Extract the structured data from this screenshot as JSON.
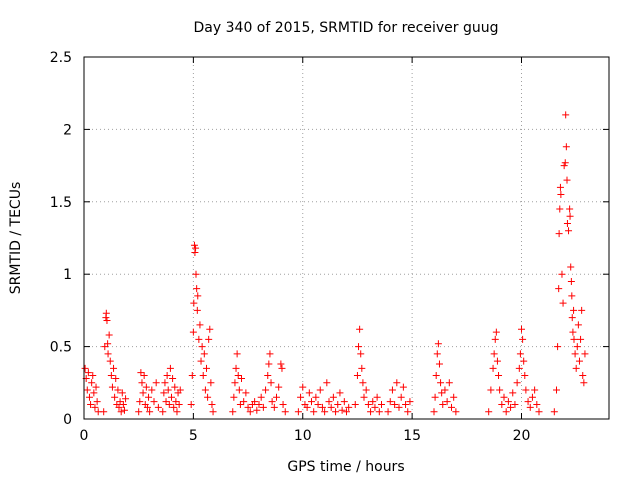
{
  "chart_data": {
    "type": "scatter",
    "title": "Day 340 of 2015, SRMTID for receiver guug",
    "xlabel": "GPS time / hours",
    "ylabel": "SRMTID / TECUs",
    "xlim": [
      0,
      24
    ],
    "ylim": [
      0,
      2.5
    ],
    "xticks": [
      0,
      5,
      10,
      15,
      20
    ],
    "yticks": [
      0,
      0.5,
      1,
      1.5,
      2,
      2.5
    ],
    "xtick_labels": [
      "0",
      "5",
      "10",
      "15",
      "20"
    ],
    "ytick_labels": [
      "0",
      "0.5",
      "1",
      "1.5",
      "2",
      "2.5"
    ],
    "grid": true,
    "marker": "+",
    "color": "#ff0000",
    "series": [
      {
        "name": "SRMTID",
        "points": [
          [
            0.05,
            0.35
          ],
          [
            0.1,
            0.28
          ],
          [
            0.15,
            0.2
          ],
          [
            0.2,
            0.32
          ],
          [
            0.25,
            0.15
          ],
          [
            0.3,
            0.1
          ],
          [
            0.35,
            0.25
          ],
          [
            0.4,
            0.3
          ],
          [
            0.45,
            0.18
          ],
          [
            0.5,
            0.08
          ],
          [
            0.55,
            0.22
          ],
          [
            0.6,
            0.12
          ],
          [
            0.65,
            0.05
          ],
          [
            0.9,
            0.05
          ],
          [
            0.95,
            0.5
          ],
          [
            1.0,
            0.7
          ],
          [
            1.02,
            0.73
          ],
          [
            1.05,
            0.68
          ],
          [
            1.08,
            0.52
          ],
          [
            1.1,
            0.45
          ],
          [
            1.15,
            0.58
          ],
          [
            1.2,
            0.4
          ],
          [
            1.25,
            0.3
          ],
          [
            1.3,
            0.22
          ],
          [
            1.35,
            0.35
          ],
          [
            1.4,
            0.15
          ],
          [
            1.45,
            0.28
          ],
          [
            1.5,
            0.1
          ],
          [
            1.55,
            0.2
          ],
          [
            1.6,
            0.08
          ],
          [
            1.65,
            0.12
          ],
          [
            1.7,
            0.05
          ],
          [
            1.75,
            0.18
          ],
          [
            1.8,
            0.1
          ],
          [
            1.85,
            0.06
          ],
          [
            1.9,
            0.14
          ],
          [
            2.5,
            0.05
          ],
          [
            2.55,
            0.12
          ],
          [
            2.6,
            0.32
          ],
          [
            2.65,
            0.25
          ],
          [
            2.7,
            0.18
          ],
          [
            2.75,
            0.3
          ],
          [
            2.8,
            0.1
          ],
          [
            2.85,
            0.22
          ],
          [
            2.9,
            0.08
          ],
          [
            2.95,
            0.15
          ],
          [
            3.0,
            0.05
          ],
          [
            3.1,
            0.2
          ],
          [
            3.2,
            0.12
          ],
          [
            3.3,
            0.25
          ],
          [
            3.4,
            0.08
          ],
          [
            3.6,
            0.05
          ],
          [
            3.65,
            0.18
          ],
          [
            3.7,
            0.25
          ],
          [
            3.75,
            0.12
          ],
          [
            3.8,
            0.3
          ],
          [
            3.85,
            0.2
          ],
          [
            3.9,
            0.1
          ],
          [
            3.95,
            0.35
          ],
          [
            4.0,
            0.15
          ],
          [
            4.05,
            0.28
          ],
          [
            4.1,
            0.08
          ],
          [
            4.15,
            0.22
          ],
          [
            4.2,
            0.12
          ],
          [
            4.25,
            0.05
          ],
          [
            4.3,
            0.18
          ],
          [
            4.35,
            0.1
          ],
          [
            4.4,
            0.2
          ],
          [
            4.9,
            0.1
          ],
          [
            4.95,
            0.3
          ],
          [
            5.0,
            0.6
          ],
          [
            5.02,
            0.8
          ],
          [
            5.05,
            1.2
          ],
          [
            5.07,
            1.15
          ],
          [
            5.1,
            1.18
          ],
          [
            5.12,
            1.0
          ],
          [
            5.15,
            0.9
          ],
          [
            5.18,
            0.75
          ],
          [
            5.2,
            0.85
          ],
          [
            5.25,
            0.55
          ],
          [
            5.3,
            0.65
          ],
          [
            5.35,
            0.4
          ],
          [
            5.4,
            0.5
          ],
          [
            5.45,
            0.3
          ],
          [
            5.5,
            0.45
          ],
          [
            5.55,
            0.2
          ],
          [
            5.6,
            0.35
          ],
          [
            5.65,
            0.15
          ],
          [
            5.7,
            0.55
          ],
          [
            5.75,
            0.62
          ],
          [
            5.8,
            0.25
          ],
          [
            5.85,
            0.1
          ],
          [
            5.9,
            0.05
          ],
          [
            6.8,
            0.05
          ],
          [
            6.85,
            0.15
          ],
          [
            6.9,
            0.25
          ],
          [
            6.95,
            0.35
          ],
          [
            7.0,
            0.45
          ],
          [
            7.05,
            0.3
          ],
          [
            7.1,
            0.2
          ],
          [
            7.15,
            0.1
          ],
          [
            7.2,
            0.28
          ],
          [
            7.3,
            0.12
          ],
          [
            7.4,
            0.18
          ],
          [
            7.5,
            0.08
          ],
          [
            7.6,
            0.05
          ],
          [
            7.7,
            0.1
          ],
          [
            7.8,
            0.12
          ],
          [
            7.9,
            0.06
          ],
          [
            8.0,
            0.1
          ],
          [
            8.1,
            0.15
          ],
          [
            8.2,
            0.08
          ],
          [
            8.3,
            0.2
          ],
          [
            8.4,
            0.3
          ],
          [
            8.45,
            0.38
          ],
          [
            8.5,
            0.45
          ],
          [
            8.55,
            0.25
          ],
          [
            8.6,
            0.12
          ],
          [
            8.7,
            0.08
          ],
          [
            8.8,
            0.15
          ],
          [
            8.9,
            0.22
          ],
          [
            9.0,
            0.38
          ],
          [
            9.05,
            0.35
          ],
          [
            9.1,
            0.1
          ],
          [
            9.2,
            0.05
          ],
          [
            9.8,
            0.05
          ],
          [
            9.9,
            0.15
          ],
          [
            10.0,
            0.22
          ],
          [
            10.1,
            0.1
          ],
          [
            10.2,
            0.08
          ],
          [
            10.3,
            0.18
          ],
          [
            10.4,
            0.12
          ],
          [
            10.5,
            0.05
          ],
          [
            10.6,
            0.15
          ],
          [
            10.7,
            0.1
          ],
          [
            10.8,
            0.2
          ],
          [
            10.9,
            0.08
          ],
          [
            11.0,
            0.05
          ],
          [
            11.1,
            0.25
          ],
          [
            11.2,
            0.12
          ],
          [
            11.3,
            0.08
          ],
          [
            11.4,
            0.15
          ],
          [
            11.5,
            0.05
          ],
          [
            11.6,
            0.1
          ],
          [
            11.7,
            0.18
          ],
          [
            11.8,
            0.06
          ],
          [
            11.9,
            0.12
          ],
          [
            12.0,
            0.05
          ],
          [
            12.1,
            0.08
          ],
          [
            12.4,
            0.1
          ],
          [
            12.5,
            0.3
          ],
          [
            12.55,
            0.5
          ],
          [
            12.6,
            0.62
          ],
          [
            12.65,
            0.45
          ],
          [
            12.7,
            0.35
          ],
          [
            12.75,
            0.25
          ],
          [
            12.8,
            0.15
          ],
          [
            12.9,
            0.2
          ],
          [
            13.0,
            0.1
          ],
          [
            13.1,
            0.05
          ],
          [
            13.2,
            0.12
          ],
          [
            13.3,
            0.08
          ],
          [
            13.4,
            0.15
          ],
          [
            13.5,
            0.05
          ],
          [
            13.6,
            0.1
          ],
          [
            13.9,
            0.05
          ],
          [
            14.0,
            0.12
          ],
          [
            14.1,
            0.2
          ],
          [
            14.2,
            0.1
          ],
          [
            14.3,
            0.25
          ],
          [
            14.4,
            0.08
          ],
          [
            14.5,
            0.15
          ],
          [
            14.6,
            0.22
          ],
          [
            14.7,
            0.1
          ],
          [
            14.8,
            0.05
          ],
          [
            14.9,
            0.12
          ],
          [
            16.0,
            0.05
          ],
          [
            16.05,
            0.15
          ],
          [
            16.1,
            0.3
          ],
          [
            16.15,
            0.45
          ],
          [
            16.2,
            0.52
          ],
          [
            16.25,
            0.38
          ],
          [
            16.3,
            0.25
          ],
          [
            16.35,
            0.18
          ],
          [
            16.4,
            0.1
          ],
          [
            16.5,
            0.2
          ],
          [
            16.6,
            0.12
          ],
          [
            16.7,
            0.25
          ],
          [
            16.8,
            0.08
          ],
          [
            16.9,
            0.15
          ],
          [
            17.0,
            0.05
          ],
          [
            18.5,
            0.05
          ],
          [
            18.6,
            0.2
          ],
          [
            18.7,
            0.35
          ],
          [
            18.75,
            0.45
          ],
          [
            18.8,
            0.55
          ],
          [
            18.85,
            0.6
          ],
          [
            18.9,
            0.4
          ],
          [
            18.95,
            0.3
          ],
          [
            19.0,
            0.2
          ],
          [
            19.1,
            0.1
          ],
          [
            19.2,
            0.15
          ],
          [
            19.3,
            0.05
          ],
          [
            19.4,
            0.12
          ],
          [
            19.5,
            0.08
          ],
          [
            19.6,
            0.18
          ],
          [
            19.7,
            0.1
          ],
          [
            19.8,
            0.25
          ],
          [
            19.9,
            0.35
          ],
          [
            19.95,
            0.45
          ],
          [
            20.0,
            0.62
          ],
          [
            20.05,
            0.55
          ],
          [
            20.1,
            0.4
          ],
          [
            20.15,
            0.3
          ],
          [
            20.2,
            0.2
          ],
          [
            20.3,
            0.12
          ],
          [
            20.4,
            0.08
          ],
          [
            20.5,
            0.15
          ],
          [
            20.6,
            0.2
          ],
          [
            20.7,
            0.1
          ],
          [
            20.8,
            0.05
          ],
          [
            21.5,
            0.05
          ],
          [
            21.6,
            0.2
          ],
          [
            21.65,
            0.5
          ],
          [
            21.7,
            0.9
          ],
          [
            21.72,
            1.28
          ],
          [
            21.75,
            1.45
          ],
          [
            21.78,
            1.6
          ],
          [
            21.8,
            1.55
          ],
          [
            21.85,
            1.0
          ],
          [
            21.9,
            0.8
          ],
          [
            21.95,
            1.75
          ],
          [
            22.0,
            1.77
          ],
          [
            22.02,
            2.1
          ],
          [
            22.05,
            1.88
          ],
          [
            22.08,
            1.65
          ],
          [
            22.1,
            1.35
          ],
          [
            22.15,
            1.3
          ],
          [
            22.2,
            1.45
          ],
          [
            22.22,
            1.4
          ],
          [
            22.25,
            1.05
          ],
          [
            22.28,
            0.95
          ],
          [
            22.3,
            0.85
          ],
          [
            22.32,
            0.7
          ],
          [
            22.35,
            0.6
          ],
          [
            22.38,
            0.75
          ],
          [
            22.4,
            0.55
          ],
          [
            22.45,
            0.45
          ],
          [
            22.5,
            0.35
          ],
          [
            22.55,
            0.5
          ],
          [
            22.6,
            0.65
          ],
          [
            22.65,
            0.4
          ],
          [
            22.7,
            0.55
          ],
          [
            22.75,
            0.75
          ],
          [
            22.8,
            0.3
          ],
          [
            22.85,
            0.25
          ],
          [
            22.9,
            0.45
          ]
        ]
      }
    ]
  }
}
